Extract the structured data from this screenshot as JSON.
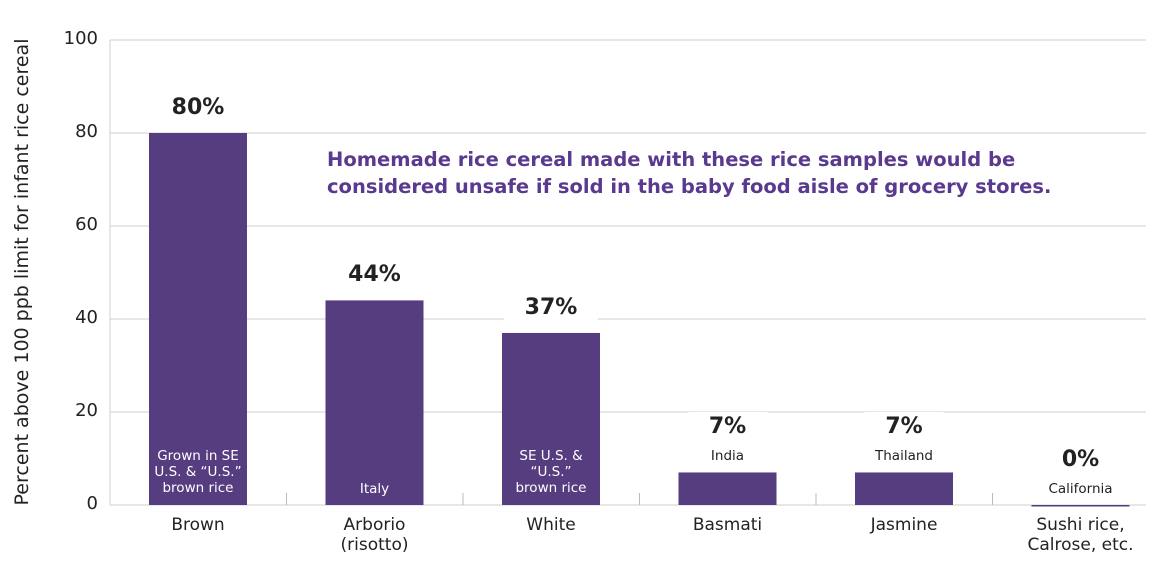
{
  "chart_data": {
    "type": "bar",
    "y_label": "Percent above 100 ppb limit for infant rice cereal",
    "annotation": "Homemade rice cereal made with these rice samples would be considered unsafe if sold in the baby food aisle of grocery stores.",
    "categories": [
      "Brown",
      "Arborio (risotto)",
      "White",
      "Basmati",
      "Jasmine",
      "Sushi rice, Calrose, etc."
    ],
    "values": [
      80,
      44,
      37,
      7,
      7,
      0
    ],
    "value_labels": [
      "80%",
      "44%",
      "37%",
      "7%",
      "7%",
      "0%"
    ],
    "notes": [
      "Grown in SE U.S. & “U.S.” brown rice",
      "Italy",
      "SE U.S. & “U.S.” brown rice",
      "India",
      "Thailand",
      "California"
    ],
    "color": "#553d80",
    "ylim": [
      0,
      100
    ],
    "yticks": [
      0,
      20,
      40,
      60,
      80,
      100
    ],
    "grid": true
  }
}
